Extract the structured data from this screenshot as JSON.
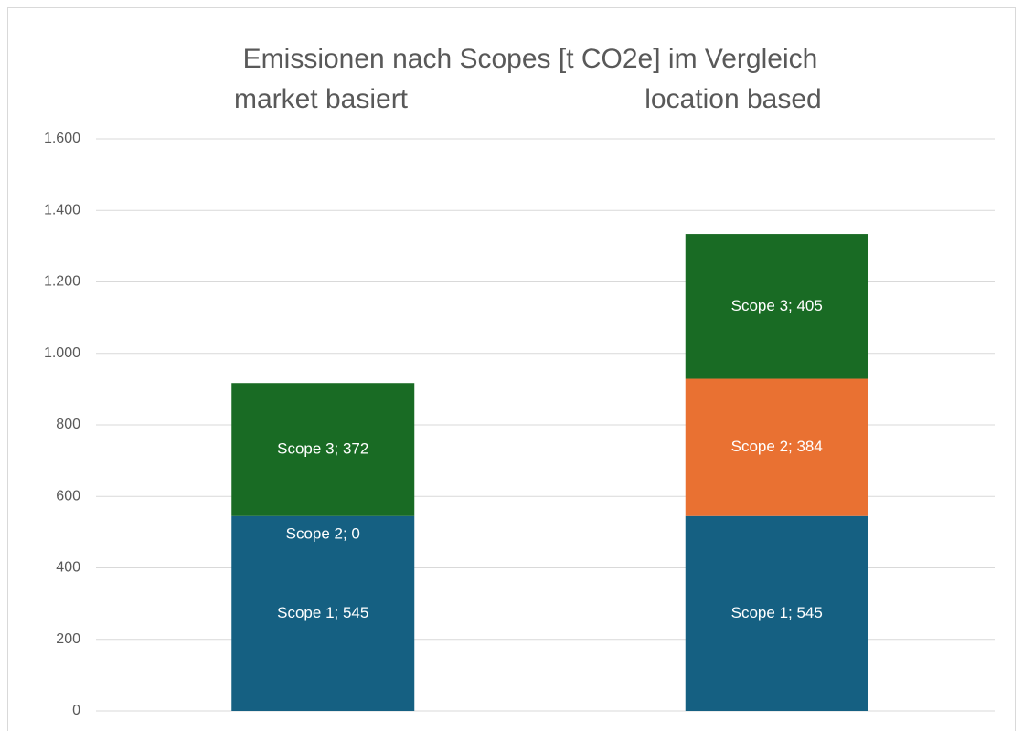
{
  "chart_data": {
    "type": "stacked_bar",
    "title": "Emissionen nach Scopes [t CO2e] im Vergleich",
    "categories": [
      "market basiert",
      "location based"
    ],
    "series": [
      {
        "name": "Scope 1",
        "color": "#156082",
        "values": [
          545,
          545
        ],
        "value_labels": [
          "Scope 1; 545",
          "Scope 1; 545"
        ]
      },
      {
        "name": "Scope 2",
        "color": "#e97132",
        "values": [
          0,
          384
        ],
        "value_labels": [
          "Scope 2; 0",
          "Scope 2; 384"
        ]
      },
      {
        "name": "Scope 3",
        "color": "#196b24",
        "values": [
          372,
          405
        ],
        "value_labels": [
          "Scope 3; 372",
          "Scope 3; 405"
        ]
      }
    ],
    "ylim": [
      0,
      1600
    ],
    "yticks": [
      0,
      200,
      400,
      600,
      800,
      {
        "value": 1000,
        "label": "1.000"
      },
      {
        "value": 1200,
        "label": "1.200"
      },
      {
        "value": 1400,
        "label": "1.400"
      },
      {
        "value": 1600,
        "label": "1.600"
      }
    ],
    "grid": true
  }
}
